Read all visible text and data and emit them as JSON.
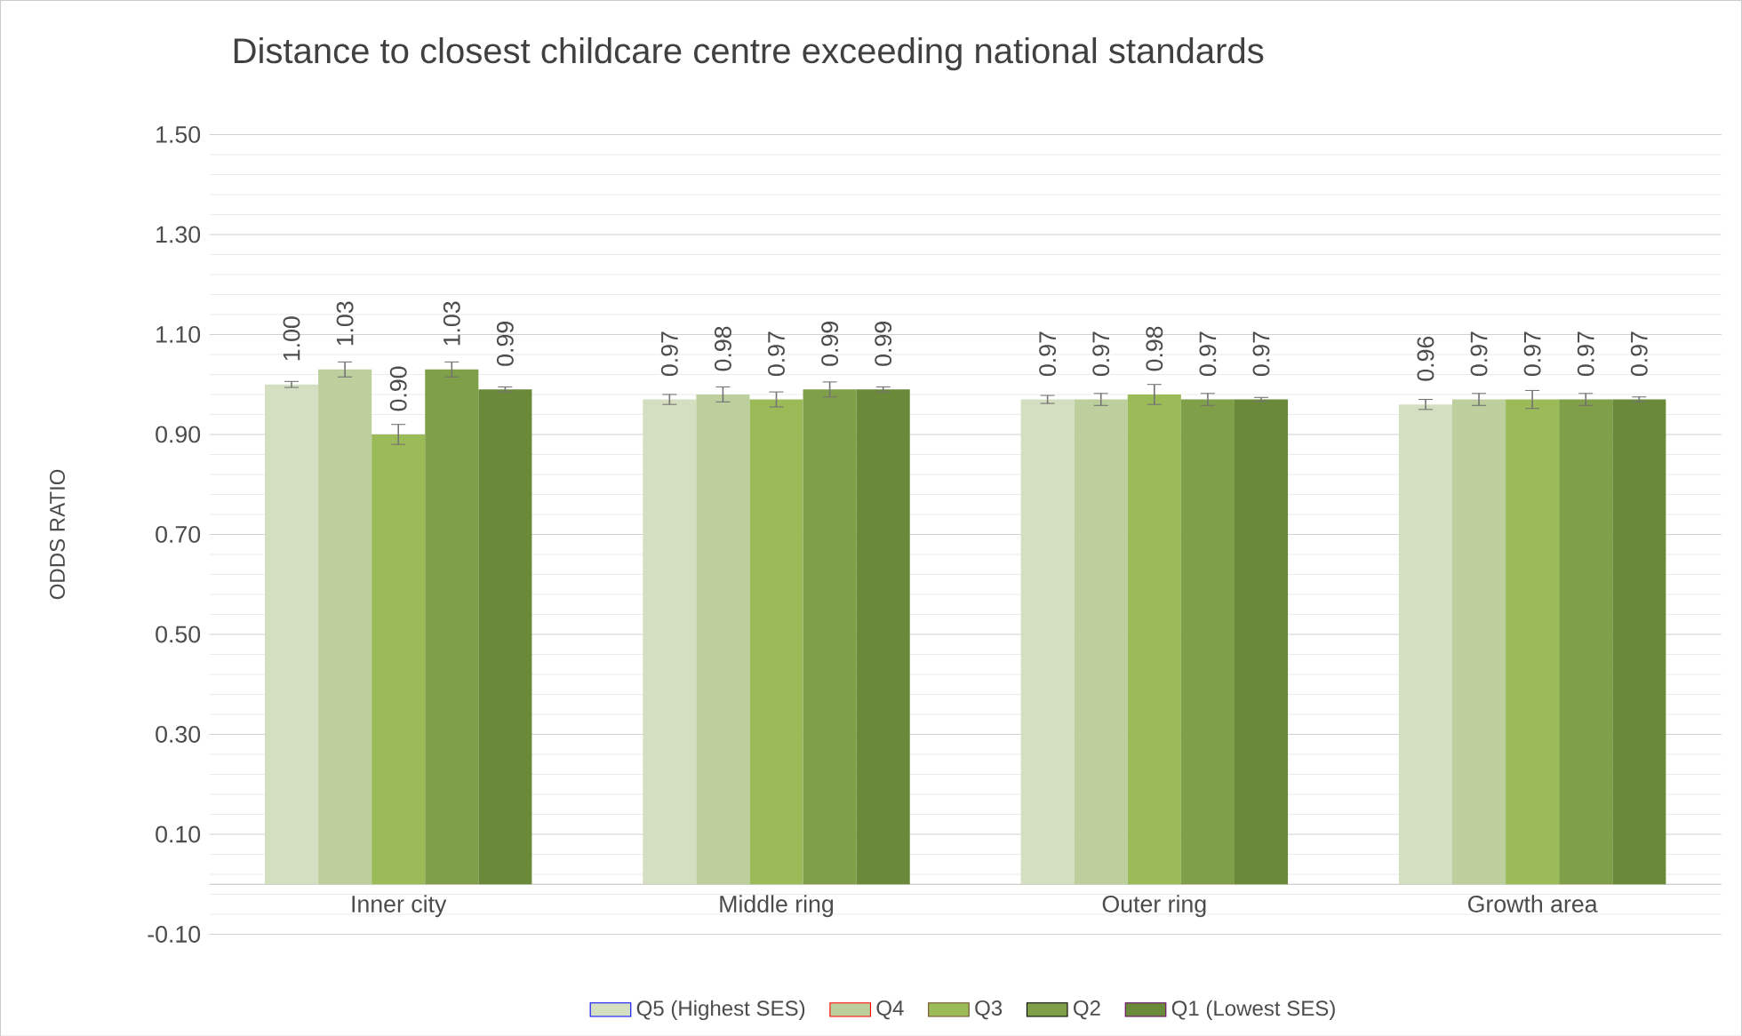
{
  "chart_data": {
    "type": "bar",
    "title": "Distance to closest childcare centre exceeding national standards",
    "ylabel": "ODDS RATIO",
    "categories": [
      "Inner city",
      "Middle ring",
      "Outer ring",
      "Growth area"
    ],
    "series": [
      {
        "name": "Q5 (Highest SES)",
        "color": "#d3dfc0",
        "values": [
          1.0,
          0.97,
          0.97,
          0.96
        ],
        "errors": [
          0.006,
          0.01,
          0.008,
          0.01
        ],
        "value_labels": [
          "1.00",
          "0.97",
          "0.97",
          "0.96"
        ]
      },
      {
        "name": "Q4",
        "color": "#bccf9c",
        "values": [
          1.03,
          0.98,
          0.97,
          0.97
        ],
        "errors": [
          0.015,
          0.015,
          0.012,
          0.012
        ],
        "value_labels": [
          "1.03",
          "0.98",
          "0.97",
          "0.97"
        ]
      },
      {
        "name": "Q3",
        "color": "#9bbb59",
        "values": [
          0.9,
          0.97,
          0.98,
          0.97
        ],
        "errors": [
          0.02,
          0.015,
          0.02,
          0.018
        ],
        "value_labels": [
          "0.90",
          "0.97",
          "0.98",
          "0.97"
        ]
      },
      {
        "name": "Q2",
        "color": "#7f9f48",
        "values": [
          1.03,
          0.99,
          0.97,
          0.97
        ],
        "errors": [
          0.015,
          0.015,
          0.012,
          0.012
        ],
        "value_labels": [
          "1.03",
          "0.99",
          "0.97",
          "0.97"
        ]
      },
      {
        "name": "Q1 (Lowest SES)",
        "color": "#6a8a3a",
        "values": [
          0.99,
          0.99,
          0.97,
          0.97
        ],
        "errors": [
          0.005,
          0.005,
          0.004,
          0.005
        ],
        "value_labels": [
          "0.99",
          "0.99",
          "0.97",
          "0.97"
        ]
      }
    ],
    "ylim": [
      -0.1,
      1.5
    ],
    "yticks": [
      {
        "value": -0.1,
        "label": "-0.10"
      },
      {
        "value": 0.1,
        "label": "0.10"
      },
      {
        "value": 0.3,
        "label": "0.30"
      },
      {
        "value": 0.5,
        "label": "0.50"
      },
      {
        "value": 0.7,
        "label": "0.70"
      },
      {
        "value": 0.9,
        "label": "0.90"
      },
      {
        "value": 1.1,
        "label": "1.10"
      },
      {
        "value": 1.3,
        "label": "1.30"
      },
      {
        "value": 1.5,
        "label": "1.50"
      }
    ],
    "grid": "y",
    "legend": "bottom"
  }
}
